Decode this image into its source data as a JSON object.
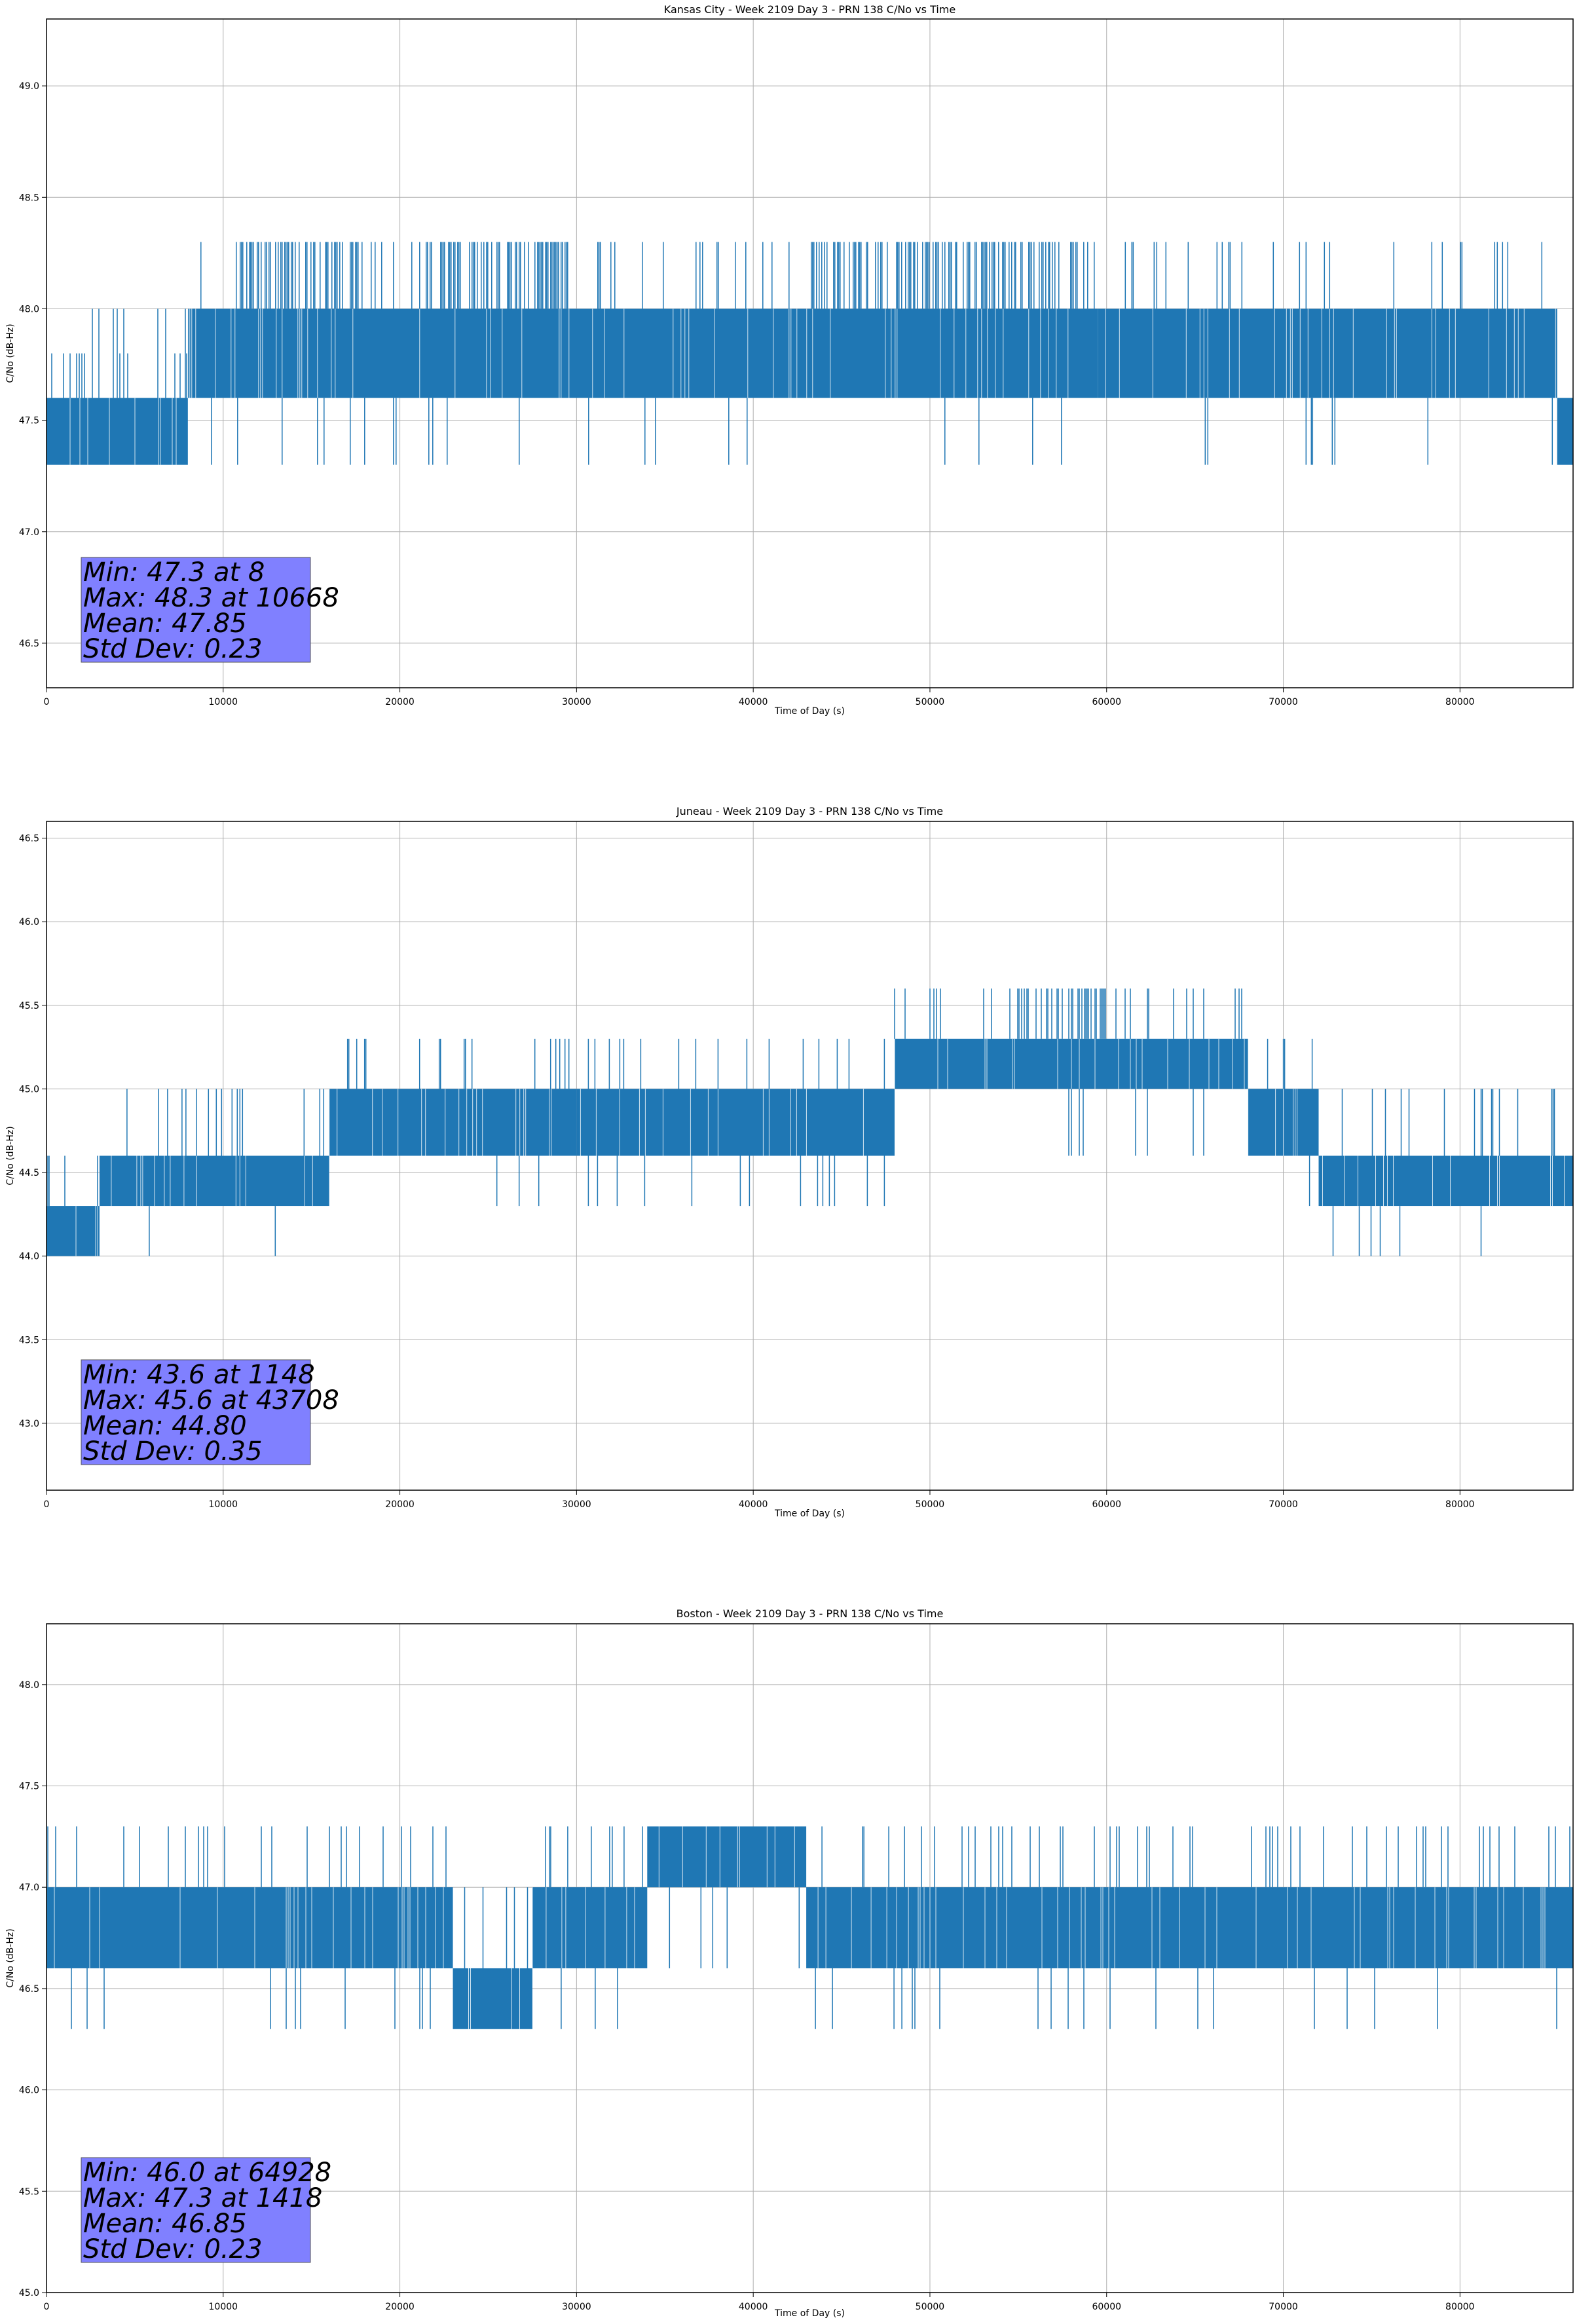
{
  "chart_data": [
    {
      "type": "line",
      "title": "Kansas City - Week 2109 Day 3 - PRN 138 C/No vs Time",
      "xlabel": "Time of Day (s)",
      "ylabel": "C/No (dB-Hz)",
      "xlim": [
        0,
        86400
      ],
      "ylim": [
        46.3,
        49.3
      ],
      "xticks": [
        0,
        10000,
        20000,
        30000,
        40000,
        50000,
        60000,
        70000,
        80000
      ],
      "yticks": [
        46.5,
        47.0,
        47.5,
        48.0,
        48.5,
        49.0
      ],
      "ytick_labels": [
        "46.5",
        "47.0",
        "47.5",
        "48.0",
        "48.5",
        "49.0"
      ],
      "grid": true,
      "series_color": "#1f77b4",
      "segments": [
        {
          "x": [
            0,
            8000
          ],
          "band": [
            47.3,
            47.6
          ],
          "spikes_up": [
            47.8,
            48.0
          ],
          "spikes_down": []
        },
        {
          "x": [
            8000,
            59500
          ],
          "band": [
            47.6,
            48.0
          ],
          "spikes_up": [
            48.3
          ],
          "spikes_down": [
            47.3
          ]
        },
        {
          "x": [
            59500,
            85500
          ],
          "band": [
            47.6,
            48.0
          ],
          "spikes_up": [
            48.3
          ],
          "spikes_down": [
            47.3
          ]
        },
        {
          "x": [
            85500,
            86400
          ],
          "band": [
            47.3,
            47.6
          ],
          "spikes_up": [],
          "spikes_down": []
        }
      ],
      "dense_up_ranges": [
        [
          10500,
          18000
        ],
        [
          21000,
          29500
        ],
        [
          43000,
          59000
        ]
      ],
      "stats": {
        "min": "Min: 47.3 at 8",
        "max": "Max: 48.3 at 10668",
        "mean": "Mean: 47.85",
        "std": "Std Dev: 0.23"
      }
    },
    {
      "type": "line",
      "title": "Juneau - Week 2109 Day 3 - PRN 138 C/No vs Time",
      "xlabel": "Time of Day (s)",
      "ylabel": "C/No (dB-Hz)",
      "xlim": [
        0,
        86400
      ],
      "ylim": [
        42.6,
        46.6
      ],
      "xticks": [
        0,
        10000,
        20000,
        30000,
        40000,
        50000,
        60000,
        70000,
        80000
      ],
      "yticks": [
        43.0,
        43.5,
        44.0,
        44.5,
        45.0,
        45.5,
        46.0,
        46.5
      ],
      "ytick_labels": [
        "43.0",
        "43.5",
        "44.0",
        "44.5",
        "45.0",
        "45.5",
        "46.0",
        "46.5"
      ],
      "grid": true,
      "series_color": "#1f77b4",
      "segments": [
        {
          "x": [
            0,
            3000
          ],
          "band": [
            44.0,
            44.3
          ],
          "spikes_up": [
            44.6
          ],
          "spikes_down": [
            43.6
          ]
        },
        {
          "x": [
            3000,
            8500
          ],
          "band": [
            44.3,
            44.6
          ],
          "spikes_up": [
            45.0
          ],
          "spikes_down": [
            44.0
          ]
        },
        {
          "x": [
            8500,
            16000
          ],
          "band": [
            44.3,
            44.6
          ],
          "spikes_up": [
            45.0
          ],
          "spikes_down": [
            44.0
          ]
        },
        {
          "x": [
            16000,
            30000
          ],
          "band": [
            44.6,
            45.0
          ],
          "spikes_up": [
            45.3
          ],
          "spikes_down": [
            44.3
          ]
        },
        {
          "x": [
            30000,
            48000
          ],
          "band": [
            44.6,
            45.0
          ],
          "spikes_up": [
            45.3
          ],
          "spikes_down": [
            44.3
          ]
        },
        {
          "x": [
            48000,
            68000
          ],
          "band": [
            45.0,
            45.3
          ],
          "spikes_up": [
            45.6
          ],
          "spikes_down": [
            44.6
          ]
        },
        {
          "x": [
            68000,
            72000
          ],
          "band": [
            44.6,
            45.0
          ],
          "spikes_up": [
            45.3
          ],
          "spikes_down": [
            44.3
          ]
        },
        {
          "x": [
            72000,
            86400
          ],
          "band": [
            44.3,
            44.6
          ],
          "spikes_up": [
            45.0
          ],
          "spikes_down": [
            44.0
          ]
        }
      ],
      "dense_up_ranges": [
        [
          54500,
          60000
        ]
      ],
      "stats": {
        "min": "Min: 43.6 at 1148",
        "max": "Max: 45.6 at 43708",
        "mean": "Mean: 44.80",
        "std": "Std Dev: 0.35"
      }
    },
    {
      "type": "line",
      "title": "Boston - Week 2109 Day 3 - PRN 138 C/No vs Time",
      "xlabel": "Time of Day (s)",
      "ylabel": "C/No (dB-Hz)",
      "xlim": [
        0,
        86400
      ],
      "ylim": [
        45.0,
        48.3
      ],
      "xticks": [
        0,
        10000,
        20000,
        30000,
        40000,
        50000,
        60000,
        70000,
        80000
      ],
      "yticks": [
        45.0,
        45.5,
        46.0,
        46.5,
        47.0,
        47.5,
        48.0
      ],
      "ytick_labels": [
        "45.0",
        "45.5",
        "46.0",
        "46.5",
        "47.0",
        "47.5",
        "48.0"
      ],
      "grid": true,
      "series_color": "#1f77b4",
      "segments": [
        {
          "x": [
            0,
            23000
          ],
          "band": [
            46.6,
            47.0
          ],
          "spikes_up": [
            47.3
          ],
          "spikes_down": [
            46.3
          ]
        },
        {
          "x": [
            23000,
            27500
          ],
          "band": [
            46.3,
            46.6
          ],
          "spikes_up": [
            47.0
          ],
          "spikes_down": []
        },
        {
          "x": [
            27500,
            34000
          ],
          "band": [
            46.6,
            47.0
          ],
          "spikes_up": [
            47.3
          ],
          "spikes_down": [
            46.3
          ]
        },
        {
          "x": [
            34000,
            43000
          ],
          "band": [
            47.0,
            47.3
          ],
          "spikes_up": [],
          "spikes_down": [
            46.6
          ]
        },
        {
          "x": [
            43000,
            49000
          ],
          "band": [
            46.6,
            47.0
          ],
          "spikes_up": [
            47.3
          ],
          "spikes_down": [
            46.3
          ]
        },
        {
          "x": [
            49000,
            86400
          ],
          "band": [
            46.6,
            47.0
          ],
          "spikes_up": [
            47.3
          ],
          "spikes_down": [
            46.3
          ]
        }
      ],
      "dense_up_ranges": [],
      "stats": {
        "min": "Min: 46.0 at 64928",
        "max": "Max: 47.3 at 1418",
        "mean": "Mean: 46.85",
        "std": "Std Dev: 0.23"
      }
    }
  ]
}
